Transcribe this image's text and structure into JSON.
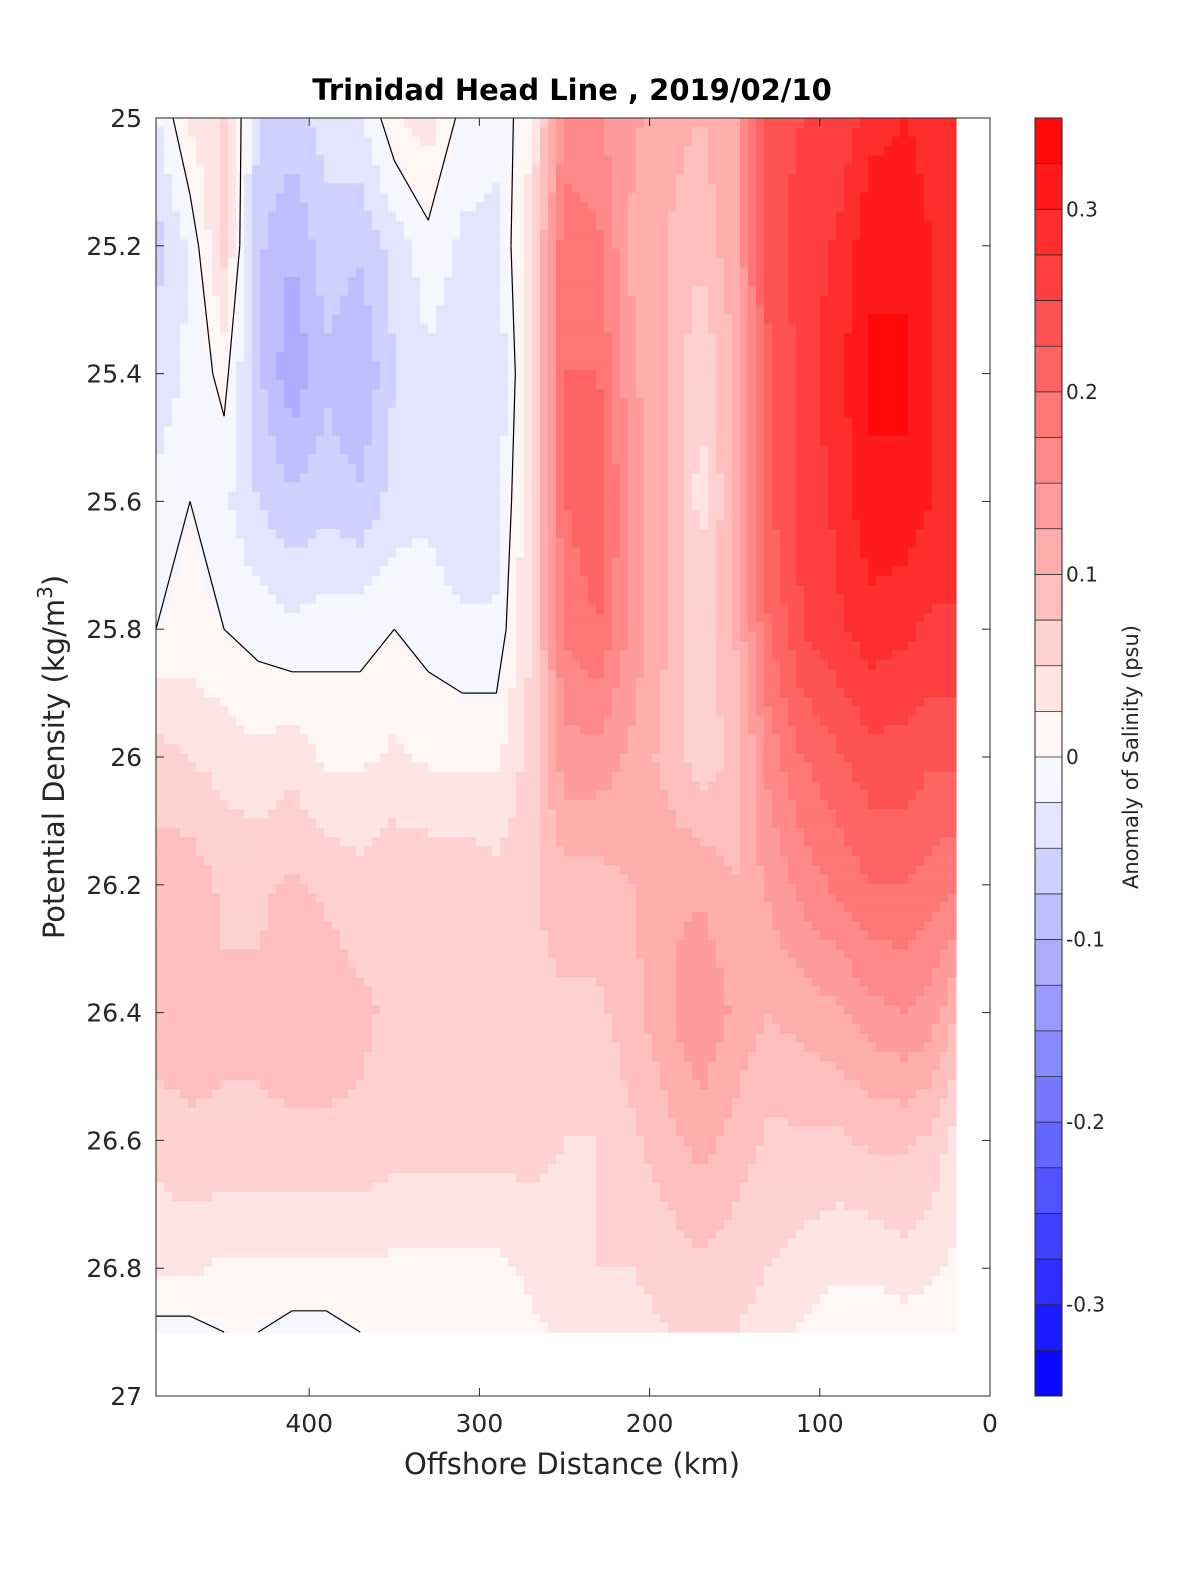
{
  "chart_data": {
    "type": "heatmap",
    "subtype": "filled contour section",
    "title": "Trinidad Head Line , 2019/02/10",
    "xlabel": "Offshore Distance (km)",
    "ylabel": "Potential Density (kg/m³)",
    "ylabel_parts": {
      "text": "Potential Density (kg/m",
      "sup": "3",
      "close": ")"
    },
    "xlim": [
      490,
      0
    ],
    "ylim": [
      25,
      27
    ],
    "y_reversed": true,
    "x_reversed": true,
    "x_ticks": [
      400,
      300,
      200,
      100,
      0
    ],
    "x_tick_labels": [
      "400",
      "300",
      "200",
      "100",
      "0"
    ],
    "y_ticks": [
      25,
      25.2,
      25.4,
      25.6,
      25.8,
      26,
      26.2,
      26.4,
      26.6,
      26.8,
      27
    ],
    "y_tick_labels": [
      "25",
      "25.2",
      "25.4",
      "25.6",
      "25.8",
      "26",
      "26.2",
      "26.4",
      "26.6",
      "26.8",
      "27"
    ],
    "grid": false,
    "colorbar": {
      "label": "Anomaly of Salinity (psu)",
      "range": [
        -0.35,
        0.35
      ],
      "levels": 28,
      "ticks": [
        0.3,
        0.2,
        0.1,
        0,
        -0.1,
        -0.2,
        -0.3
      ],
      "tick_labels": [
        "0.3",
        "0.2",
        "0.1",
        "0",
        "-0.1",
        "-0.2",
        "-0.3"
      ],
      "color_min": "#0000ff",
      "color_mid": "#ffffff",
      "color_max": "#ff0000"
    },
    "zero_contour_color": "#000000",
    "data_extent_km": [
      490,
      20
    ],
    "stations_km": [
      490,
      470,
      450,
      430,
      410,
      390,
      370,
      350,
      330,
      310,
      290,
      270,
      250,
      230,
      210,
      190,
      170,
      150,
      130,
      110,
      90,
      70,
      50,
      35,
      20
    ],
    "density_levels": [
      25.0,
      25.2,
      25.4,
      25.6,
      25.8,
      26.0,
      26.2,
      26.4,
      26.6,
      26.8,
      26.9
    ],
    "anomaly_values": [
      [
        -0.03,
        0.03,
        0.05,
        -0.05,
        -0.06,
        -0.04,
        -0.03,
        0.02,
        0.04,
        -0.01,
        -0.02,
        0.02,
        0.15,
        0.15,
        0.13,
        0.11,
        0.1,
        0.12,
        0.24,
        0.25,
        0.25,
        0.29,
        0.3,
        0.29,
        0.29
      ],
      [
        -0.06,
        -0.02,
        0.06,
        -0.07,
        -0.1,
        -0.06,
        -0.07,
        -0.04,
        -0.01,
        -0.03,
        -0.03,
        0.04,
        0.2,
        0.18,
        0.12,
        0.1,
        0.08,
        0.12,
        0.24,
        0.26,
        0.28,
        0.32,
        0.32,
        0.3,
        0.29
      ],
      [
        -0.04,
        -0.02,
        0.01,
        -0.07,
        -0.12,
        -0.08,
        -0.1,
        -0.05,
        -0.03,
        -0.04,
        -0.05,
        0.04,
        0.2,
        0.2,
        0.13,
        0.1,
        0.05,
        0.1,
        0.22,
        0.26,
        0.29,
        0.33,
        0.33,
        0.3,
        0.29
      ],
      [
        -0.02,
        0.0,
        -0.02,
        -0.05,
        -0.07,
        -0.06,
        -0.07,
        -0.04,
        -0.03,
        -0.05,
        -0.04,
        0.05,
        0.2,
        0.22,
        0.14,
        0.1,
        0.04,
        0.1,
        0.22,
        0.26,
        0.28,
        0.32,
        0.32,
        0.3,
        0.29
      ],
      [
        0.0,
        0.01,
        0.0,
        -0.01,
        -0.02,
        -0.01,
        -0.01,
        0.0,
        -0.01,
        -0.02,
        -0.02,
        0.05,
        0.18,
        0.2,
        0.14,
        0.1,
        0.06,
        0.1,
        0.2,
        0.25,
        0.27,
        0.29,
        0.28,
        0.27,
        0.27
      ],
      [
        0.06,
        0.05,
        0.04,
        0.03,
        0.04,
        0.02,
        0.02,
        0.03,
        0.02,
        0.02,
        0.02,
        0.06,
        0.14,
        0.14,
        0.12,
        0.09,
        0.06,
        0.08,
        0.16,
        0.2,
        0.22,
        0.24,
        0.24,
        0.23,
        0.23
      ],
      [
        0.09,
        0.09,
        0.07,
        0.07,
        0.08,
        0.07,
        0.06,
        0.07,
        0.07,
        0.07,
        0.06,
        0.07,
        0.09,
        0.09,
        0.1,
        0.12,
        0.12,
        0.1,
        0.13,
        0.16,
        0.18,
        0.2,
        0.2,
        0.19,
        0.18
      ],
      [
        0.09,
        0.09,
        0.08,
        0.08,
        0.09,
        0.09,
        0.08,
        0.07,
        0.07,
        0.07,
        0.07,
        0.07,
        0.07,
        0.07,
        0.09,
        0.12,
        0.15,
        0.12,
        0.1,
        0.11,
        0.12,
        0.14,
        0.15,
        0.14,
        0.1
      ],
      [
        0.06,
        0.07,
        0.07,
        0.07,
        0.07,
        0.07,
        0.07,
        0.06,
        0.06,
        0.06,
        0.06,
        0.06,
        0.05,
        0.05,
        0.07,
        0.09,
        0.11,
        0.09,
        0.07,
        0.07,
        0.07,
        0.08,
        0.08,
        0.07,
        0.04
      ],
      [
        0.03,
        0.03,
        0.02,
        0.02,
        0.02,
        0.02,
        0.02,
        0.02,
        0.02,
        0.02,
        0.02,
        0.03,
        0.04,
        0.05,
        0.05,
        0.06,
        0.07,
        0.06,
        0.05,
        0.04,
        0.03,
        0.03,
        0.04,
        0.03,
        0.02
      ],
      [
        -0.01,
        -0.01,
        0.0,
        0.0,
        -0.01,
        -0.01,
        0.0,
        0.0,
        0.0,
        0.0,
        0.0,
        0.02,
        0.03,
        0.03,
        0.04,
        0.05,
        0.06,
        0.05,
        0.04,
        0.02,
        0.01,
        0.01,
        0.01,
        0.01,
        0.01
      ]
    ]
  }
}
